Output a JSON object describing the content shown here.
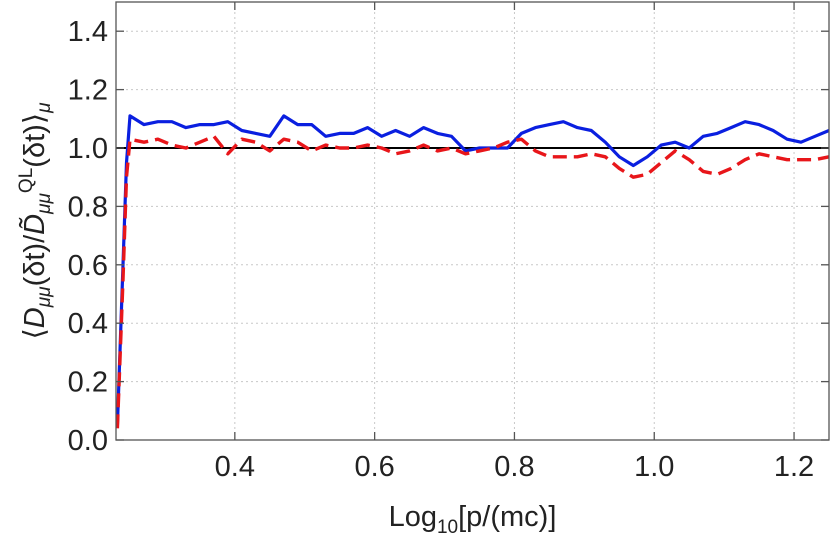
{
  "chart_data": {
    "type": "line",
    "xlabel": "Log10[p/(mc)]",
    "ylabel": "⟨Dμμ(δt)/D̃μμQL(δt)⟩μ",
    "xlim": [
      0.23,
      1.25
    ],
    "ylim": [
      0.0,
      1.5
    ],
    "xticks": [
      0.4,
      0.6,
      0.8,
      1.0,
      1.2
    ],
    "xtick_labels": [
      "0.4",
      "0.6",
      "0.8",
      "1.0",
      "1.2"
    ],
    "yticks": [
      0.0,
      0.2,
      0.4,
      0.6,
      0.8,
      1.0,
      1.2,
      1.4
    ],
    "ytick_labels": [
      "0.0",
      "0.2",
      "0.4",
      "0.6",
      "0.8",
      "1.0",
      "1.2",
      "1.4"
    ],
    "grid": true,
    "reference_line": {
      "y": 1.0,
      "color": "#000000"
    },
    "series": [
      {
        "color": "#0a1fe0",
        "style": "solid",
        "x": [
          0.232,
          0.24,
          0.245,
          0.25,
          0.27,
          0.29,
          0.31,
          0.33,
          0.35,
          0.37,
          0.39,
          0.41,
          0.43,
          0.45,
          0.47,
          0.49,
          0.51,
          0.53,
          0.55,
          0.57,
          0.59,
          0.61,
          0.63,
          0.65,
          0.67,
          0.69,
          0.71,
          0.73,
          0.75,
          0.77,
          0.79,
          0.81,
          0.83,
          0.85,
          0.87,
          0.89,
          0.91,
          0.93,
          0.95,
          0.97,
          0.99,
          1.01,
          1.03,
          1.05,
          1.07,
          1.09,
          1.11,
          1.13,
          1.15,
          1.17,
          1.19,
          1.21,
          1.23,
          1.25
        ],
        "y": [
          0.05,
          0.6,
          0.95,
          1.11,
          1.08,
          1.09,
          1.09,
          1.07,
          1.08,
          1.08,
          1.09,
          1.06,
          1.05,
          1.04,
          1.11,
          1.08,
          1.08,
          1.04,
          1.05,
          1.05,
          1.07,
          1.04,
          1.06,
          1.04,
          1.07,
          1.05,
          1.04,
          0.99,
          1.0,
          1.0,
          1.0,
          1.05,
          1.07,
          1.08,
          1.09,
          1.07,
          1.06,
          1.02,
          0.97,
          0.94,
          0.97,
          1.01,
          1.02,
          1.0,
          1.04,
          1.05,
          1.07,
          1.09,
          1.08,
          1.06,
          1.03,
          1.02,
          1.04,
          1.06
        ]
      },
      {
        "color": "#e8161a",
        "style": "dashed",
        "x": [
          0.232,
          0.24,
          0.245,
          0.25,
          0.27,
          0.29,
          0.31,
          0.33,
          0.35,
          0.37,
          0.39,
          0.41,
          0.43,
          0.45,
          0.47,
          0.49,
          0.51,
          0.53,
          0.55,
          0.57,
          0.59,
          0.61,
          0.63,
          0.65,
          0.67,
          0.69,
          0.71,
          0.73,
          0.75,
          0.77,
          0.79,
          0.81,
          0.83,
          0.85,
          0.87,
          0.89,
          0.91,
          0.93,
          0.95,
          0.97,
          0.99,
          1.01,
          1.03,
          1.05,
          1.07,
          1.09,
          1.11,
          1.13,
          1.15,
          1.17,
          1.19,
          1.21,
          1.23,
          1.25
        ],
        "y": [
          0.04,
          0.55,
          0.9,
          1.03,
          1.02,
          1.03,
          1.01,
          1.0,
          1.02,
          1.04,
          0.98,
          1.03,
          1.02,
          0.99,
          1.03,
          1.02,
          0.99,
          1.01,
          1.0,
          1.0,
          1.01,
          1.0,
          0.98,
          0.99,
          1.01,
          0.99,
          1.0,
          0.98,
          0.99,
          1.0,
          1.02,
          1.03,
          0.99,
          0.97,
          0.97,
          0.97,
          0.98,
          0.97,
          0.93,
          0.9,
          0.91,
          0.95,
          0.99,
          0.96,
          0.92,
          0.91,
          0.93,
          0.96,
          0.98,
          0.97,
          0.96,
          0.96,
          0.96,
          0.97
        ]
      }
    ]
  }
}
